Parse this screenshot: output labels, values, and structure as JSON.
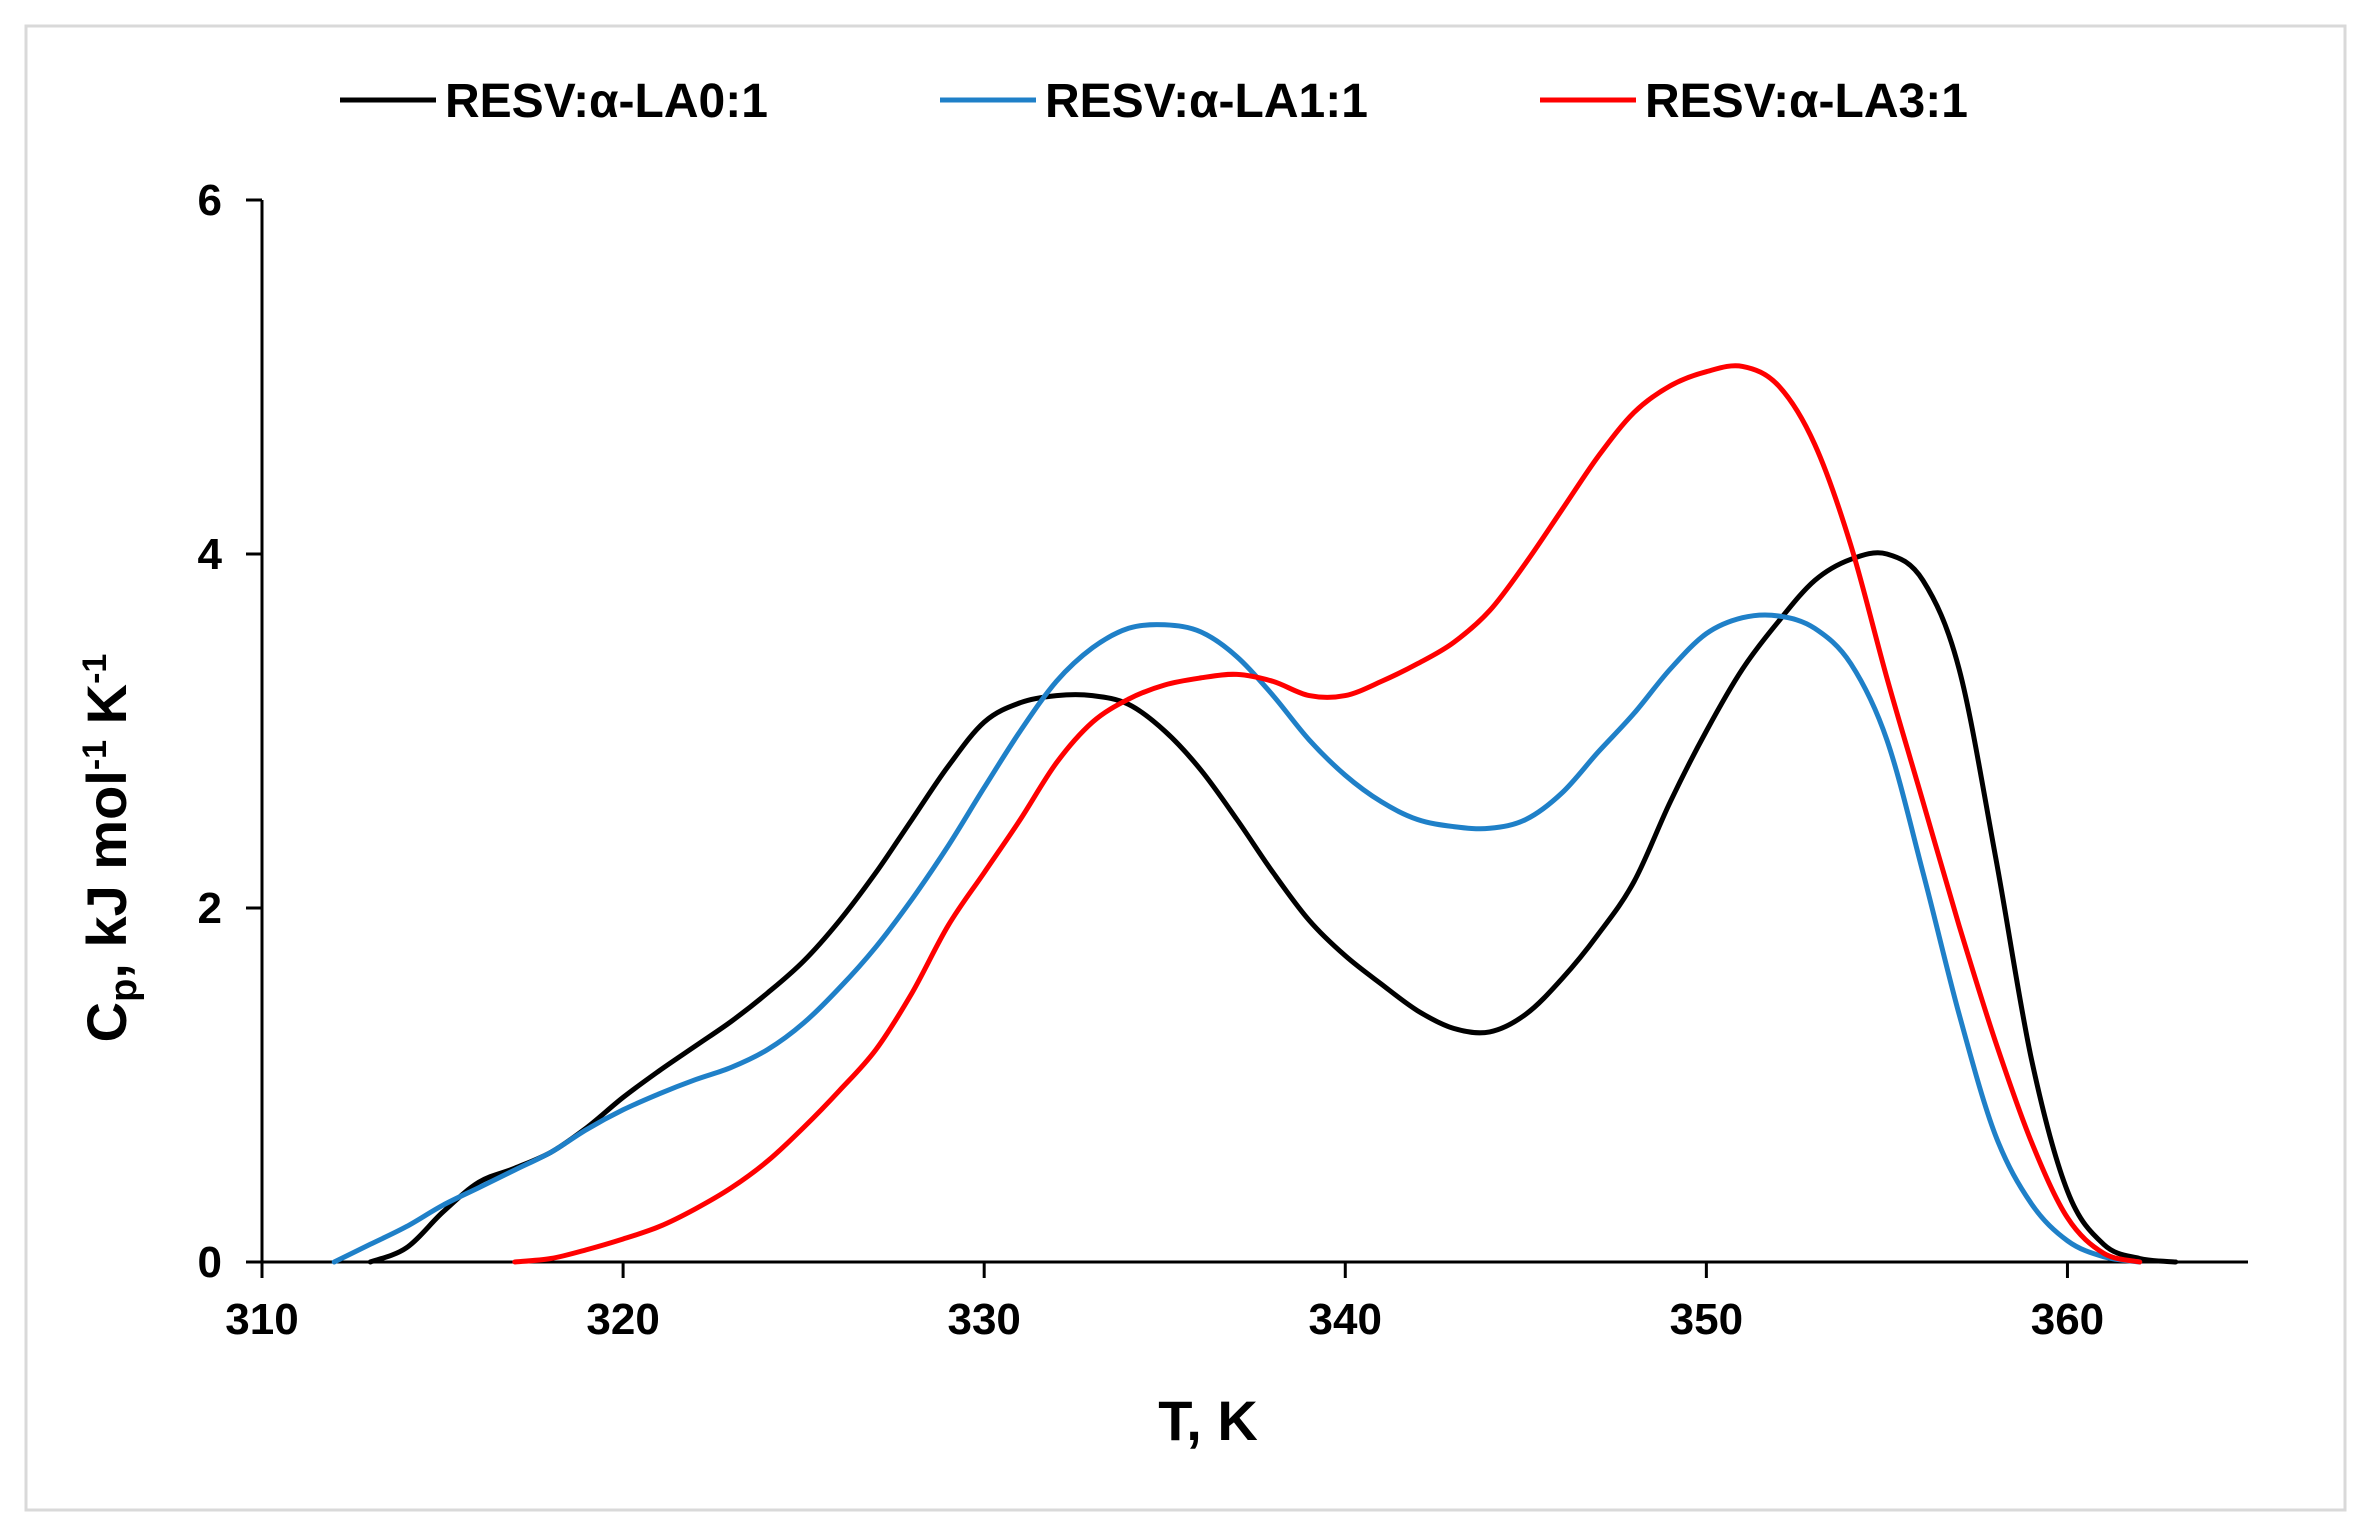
{
  "chart_data": {
    "type": "line",
    "title": "",
    "xlabel": "T, K",
    "ylabel": {
      "main": "C",
      "sub": "p",
      "unit_a": ", kJ mol",
      "sup_a": "-1",
      "unit_b": " K",
      "sup_b": "-1"
    },
    "xlim": [
      310,
      365
    ],
    "ylim": [
      0,
      6
    ],
    "xticks": [
      310,
      320,
      330,
      340,
      350,
      360
    ],
    "yticks": [
      0,
      2,
      4,
      6
    ],
    "grid": false,
    "legend_position": "top",
    "series": [
      {
        "name": "RESV:α-LA 0:1",
        "label": "RESV:α-LA0:1",
        "color": "#000000",
        "x": [
          313,
          314,
          315,
          316,
          317,
          318,
          319,
          320,
          321,
          322,
          323,
          324,
          325,
          326,
          327,
          328,
          329,
          330,
          331,
          332,
          333,
          334,
          335,
          336,
          337,
          338,
          339,
          340,
          341,
          342,
          343,
          344,
          345,
          346,
          347,
          348,
          349,
          350,
          351,
          352,
          353,
          354,
          355,
          356,
          357,
          358,
          359,
          360,
          361,
          362,
          363
        ],
        "y": [
          0,
          0.08,
          0.28,
          0.45,
          0.53,
          0.62,
          0.76,
          0.93,
          1.08,
          1.22,
          1.36,
          1.52,
          1.7,
          1.93,
          2.2,
          2.5,
          2.8,
          3.05,
          3.16,
          3.2,
          3.2,
          3.15,
          3.0,
          2.78,
          2.5,
          2.2,
          1.93,
          1.73,
          1.57,
          1.42,
          1.32,
          1.3,
          1.4,
          1.6,
          1.85,
          2.15,
          2.6,
          3.0,
          3.35,
          3.62,
          3.85,
          3.97,
          4.0,
          3.85,
          3.35,
          2.3,
          1.15,
          0.4,
          0.1,
          0.02,
          0
        ]
      },
      {
        "name": "RESV:α-LA 1:1",
        "label": "RESV:α-LA1:1",
        "color": "#1f80c8",
        "x": [
          312,
          313,
          314,
          315,
          316,
          317,
          318,
          319,
          320,
          321,
          322,
          323,
          324,
          325,
          326,
          327,
          328,
          329,
          330,
          331,
          332,
          333,
          334,
          335,
          336,
          337,
          338,
          339,
          340,
          341,
          342,
          343,
          344,
          345,
          346,
          347,
          348,
          349,
          350,
          351,
          352,
          353,
          354,
          355,
          356,
          357,
          358,
          359,
          360,
          361,
          362
        ],
        "y": [
          0,
          0.1,
          0.2,
          0.32,
          0.42,
          0.52,
          0.62,
          0.75,
          0.86,
          0.95,
          1.03,
          1.1,
          1.2,
          1.35,
          1.55,
          1.78,
          2.05,
          2.35,
          2.68,
          3.0,
          3.28,
          3.47,
          3.58,
          3.6,
          3.56,
          3.42,
          3.2,
          2.95,
          2.75,
          2.6,
          2.5,
          2.46,
          2.45,
          2.5,
          2.65,
          2.88,
          3.1,
          3.35,
          3.55,
          3.64,
          3.65,
          3.58,
          3.38,
          2.95,
          2.2,
          1.4,
          0.72,
          0.33,
          0.12,
          0.03,
          0
        ]
      },
      {
        "name": "RESV:α-LA 3:1",
        "label": "RESV:α-LA3:1",
        "color": "#ff0000",
        "x": [
          317,
          318,
          319,
          320,
          321,
          322,
          323,
          324,
          325,
          326,
          327,
          328,
          329,
          330,
          331,
          332,
          333,
          334,
          335,
          336,
          337,
          338,
          339,
          340,
          341,
          342,
          343,
          344,
          345,
          346,
          347,
          348,
          349,
          350,
          351,
          352,
          353,
          354,
          355,
          356,
          357,
          358,
          359,
          360,
          361,
          362
        ],
        "y": [
          0,
          0.02,
          0.07,
          0.13,
          0.2,
          0.3,
          0.42,
          0.57,
          0.76,
          0.97,
          1.2,
          1.52,
          1.9,
          2.2,
          2.5,
          2.82,
          3.05,
          3.18,
          3.26,
          3.3,
          3.32,
          3.28,
          3.2,
          3.2,
          3.28,
          3.38,
          3.5,
          3.68,
          3.95,
          4.25,
          4.55,
          4.8,
          4.95,
          5.03,
          5.06,
          4.95,
          4.62,
          4.05,
          3.3,
          2.6,
          1.9,
          1.25,
          0.68,
          0.25,
          0.05,
          0
        ]
      }
    ]
  }
}
